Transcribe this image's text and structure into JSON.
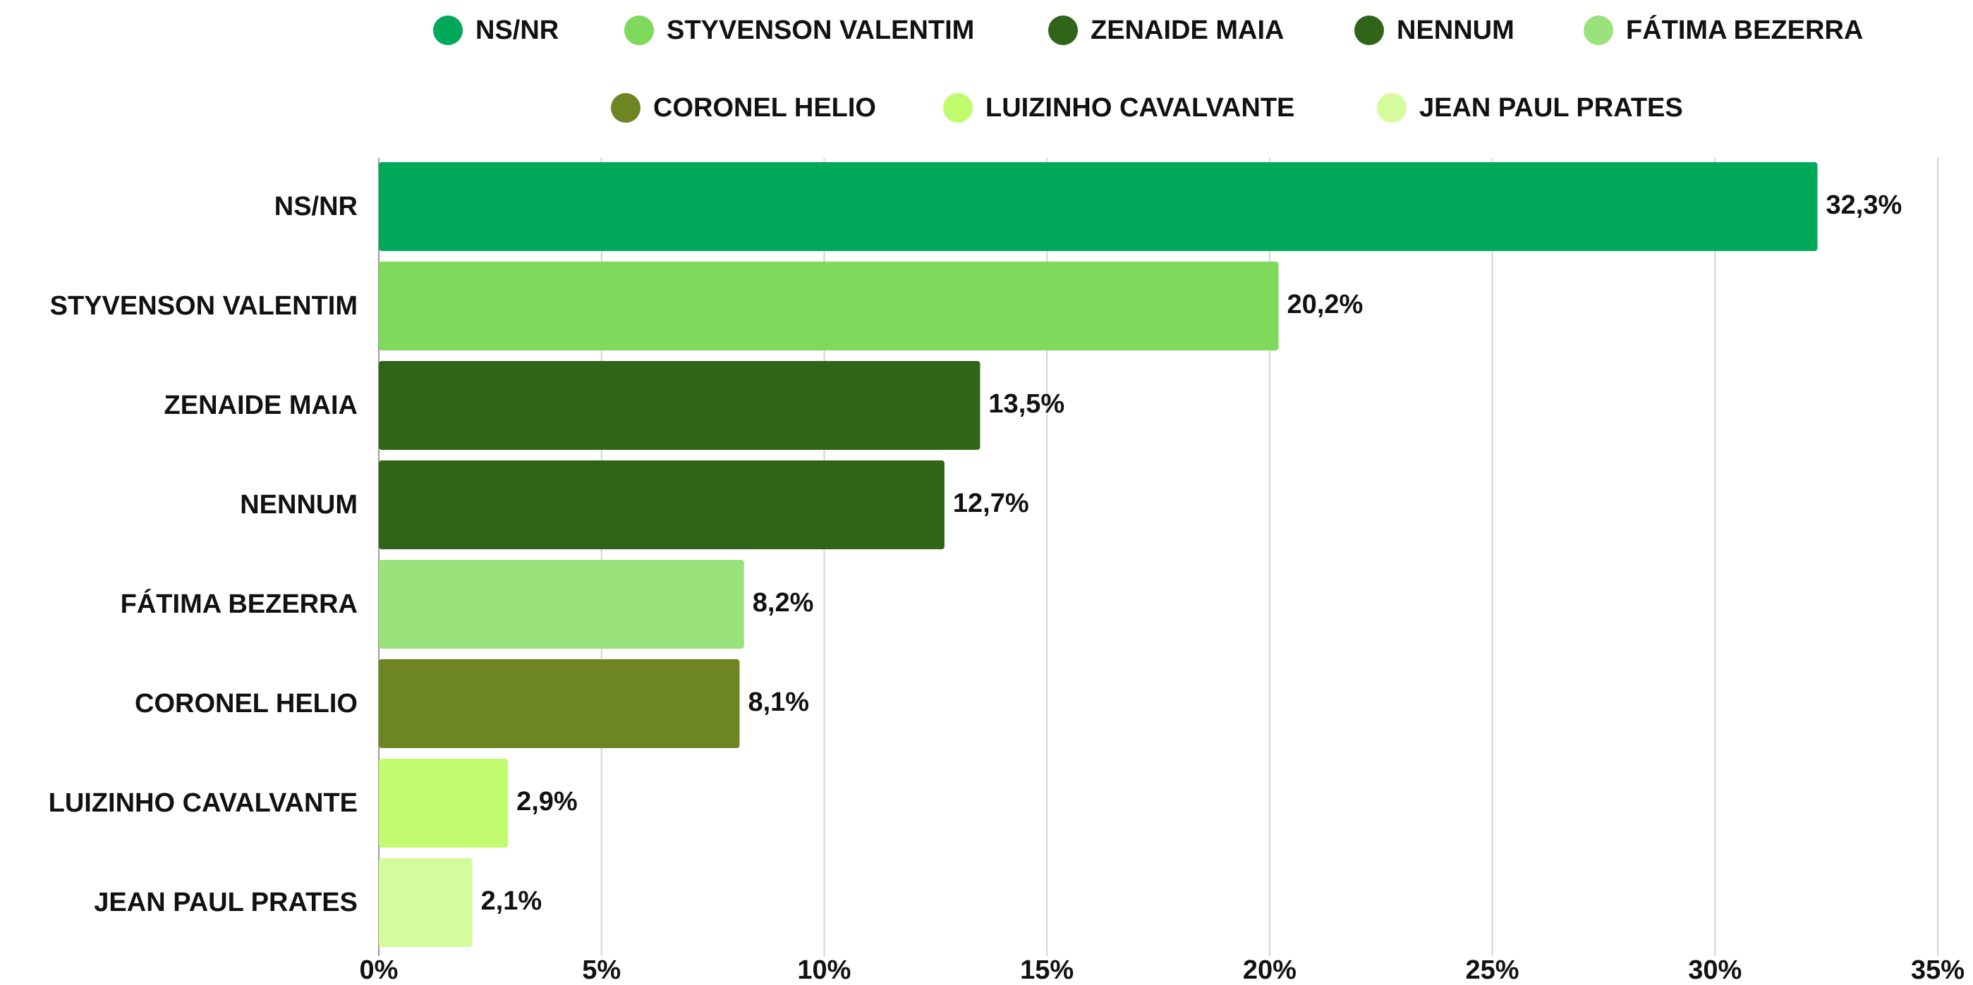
{
  "chart_data": {
    "type": "hbar",
    "categories": [
      "NS/NR",
      "STYVENSON VALENTIM",
      "ZENAIDE MAIA",
      "NENNUM",
      "FÁTIMA BEZERRA",
      "CORONEL HELIO",
      "LUIZINHO CAVALVANTE",
      "JEAN PAUL PRATES"
    ],
    "values": [
      32.3,
      20.2,
      13.5,
      12.7,
      8.2,
      8.1,
      2.9,
      2.1
    ],
    "value_labels": [
      "32,3%",
      "20,2%",
      "13,5%",
      "12,7%",
      "8,2%",
      "8,1%",
      "2,9%",
      "2,1%"
    ],
    "colors": [
      "#00a859",
      "#7fd95a",
      "#2f6419",
      "#2f6419",
      "#9ae27b",
      "#6e8523",
      "#c0fc6e",
      "#d4fc9c"
    ],
    "xlim": [
      0,
      35
    ],
    "xticks": [
      {
        "value": 0,
        "label": "0%"
      },
      {
        "value": 5,
        "label": "5%"
      },
      {
        "value": 10,
        "label": "10%"
      },
      {
        "value": 15,
        "label": "15%"
      },
      {
        "value": 20,
        "label": "20%"
      },
      {
        "value": 25,
        "label": "25%"
      },
      {
        "value": 30,
        "label": "30%"
      },
      {
        "value": 35,
        "label": "35%"
      }
    ],
    "grid": true,
    "legend": "top"
  }
}
